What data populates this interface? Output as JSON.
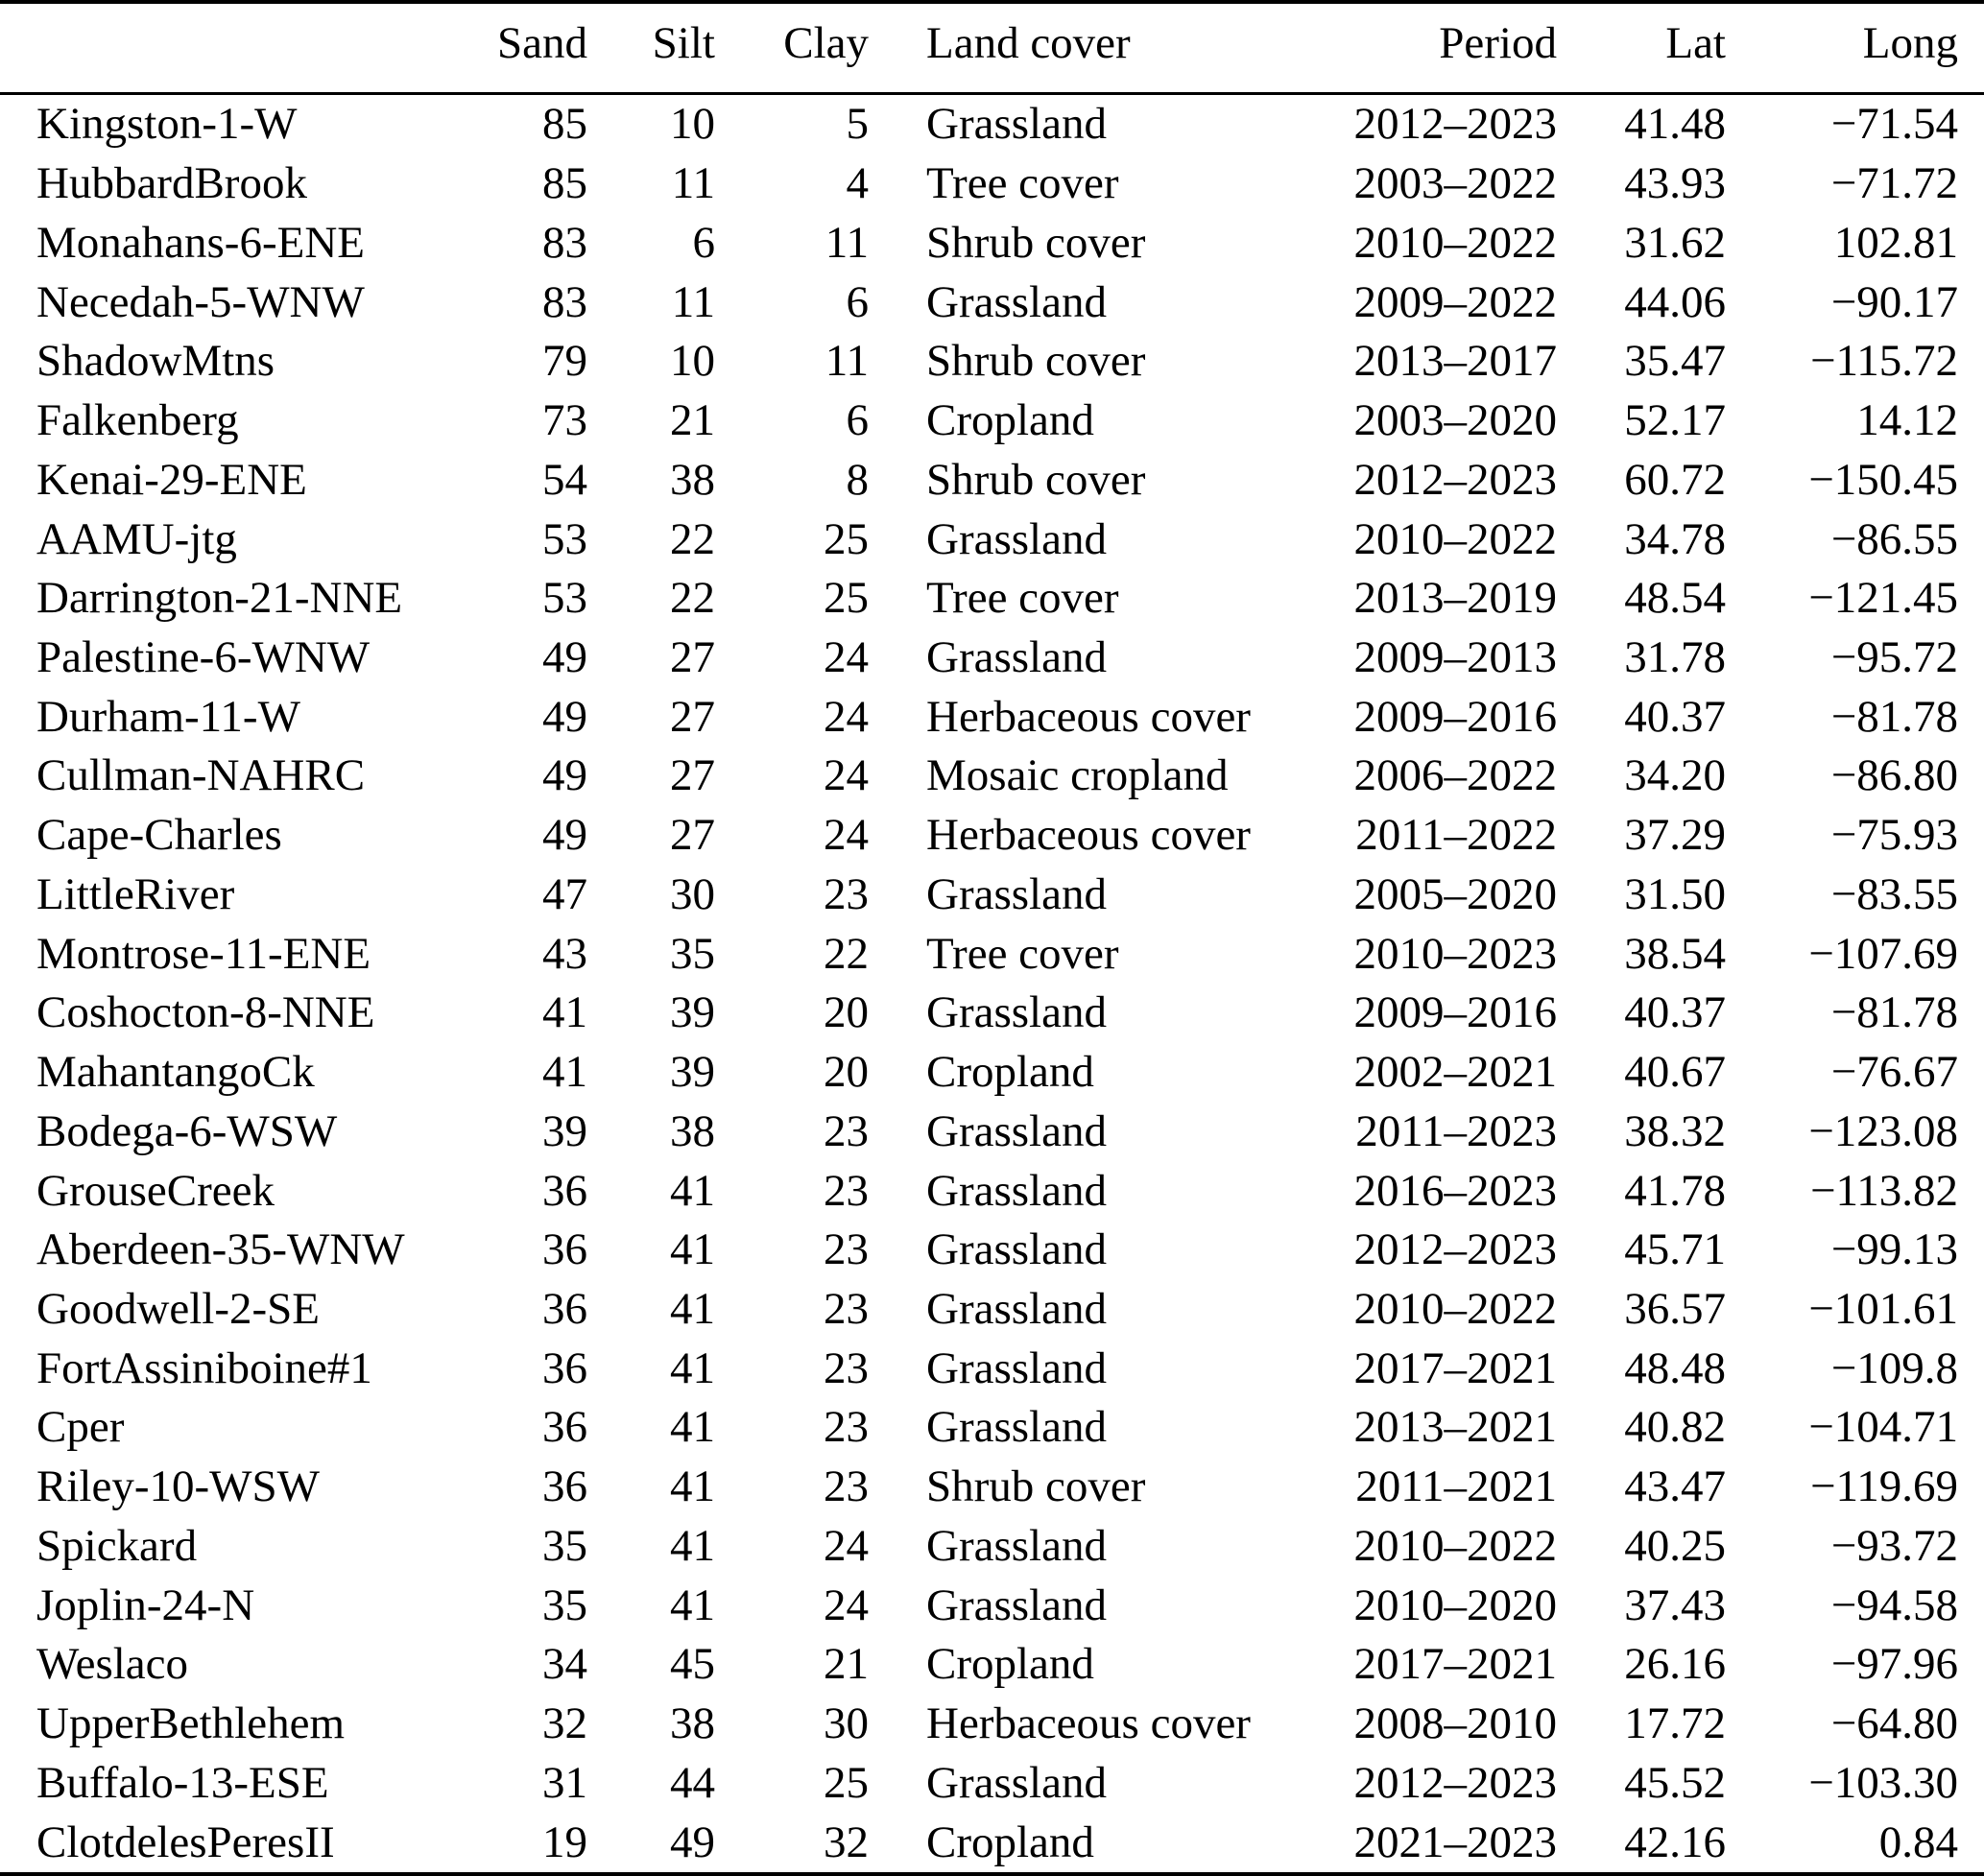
{
  "table": {
    "columns": [
      "",
      "Sand",
      "Silt",
      "Clay",
      "Land cover",
      "Period",
      "Lat",
      "Long"
    ],
    "rows": [
      {
        "name": "Kingston-1-W",
        "sand": "85",
        "silt": "10",
        "clay": "5",
        "land_cover": "Grassland",
        "period": "2012–2023",
        "lat": "41.48",
        "long": "−71.54"
      },
      {
        "name": "HubbardBrook",
        "sand": "85",
        "silt": "11",
        "clay": "4",
        "land_cover": "Tree cover",
        "period": "2003–2022",
        "lat": "43.93",
        "long": "−71.72"
      },
      {
        "name": "Monahans-6-ENE",
        "sand": "83",
        "silt": "6",
        "clay": "11",
        "land_cover": "Shrub cover",
        "period": "2010–2022",
        "lat": "31.62",
        "long": "102.81"
      },
      {
        "name": "Necedah-5-WNW",
        "sand": "83",
        "silt": "11",
        "clay": "6",
        "land_cover": "Grassland",
        "period": "2009–2022",
        "lat": "44.06",
        "long": "−90.17"
      },
      {
        "name": "ShadowMtns",
        "sand": "79",
        "silt": "10",
        "clay": "11",
        "land_cover": "Shrub cover",
        "period": "2013–2017",
        "lat": "35.47",
        "long": "−115.72"
      },
      {
        "name": "Falkenberg",
        "sand": "73",
        "silt": "21",
        "clay": "6",
        "land_cover": "Cropland",
        "period": "2003–2020",
        "lat": "52.17",
        "long": "14.12"
      },
      {
        "name": "Kenai-29-ENE",
        "sand": "54",
        "silt": "38",
        "clay": "8",
        "land_cover": "Shrub cover",
        "period": "2012–2023",
        "lat": "60.72",
        "long": "−150.45"
      },
      {
        "name": "AAMU-jtg",
        "sand": "53",
        "silt": "22",
        "clay": "25",
        "land_cover": "Grassland",
        "period": "2010–2022",
        "lat": "34.78",
        "long": "−86.55"
      },
      {
        "name": "Darrington-21-NNE",
        "sand": "53",
        "silt": "22",
        "clay": "25",
        "land_cover": "Tree cover",
        "period": "2013–2019",
        "lat": "48.54",
        "long": "−121.45"
      },
      {
        "name": "Palestine-6-WNW",
        "sand": "49",
        "silt": "27",
        "clay": "24",
        "land_cover": "Grassland",
        "period": "2009–2013",
        "lat": "31.78",
        "long": "−95.72"
      },
      {
        "name": "Durham-11-W",
        "sand": "49",
        "silt": "27",
        "clay": "24",
        "land_cover": "Herbaceous cover",
        "period": "2009–2016",
        "lat": "40.37",
        "long": "−81.78"
      },
      {
        "name": "Cullman-NAHRC",
        "sand": "49",
        "silt": "27",
        "clay": "24",
        "land_cover": "Mosaic cropland",
        "period": "2006–2022",
        "lat": "34.20",
        "long": "−86.80"
      },
      {
        "name": "Cape-Charles",
        "sand": "49",
        "silt": "27",
        "clay": "24",
        "land_cover": "Herbaceous cover",
        "period": "2011–2022",
        "lat": "37.29",
        "long": "−75.93"
      },
      {
        "name": "LittleRiver",
        "sand": "47",
        "silt": "30",
        "clay": "23",
        "land_cover": "Grassland",
        "period": "2005–2020",
        "lat": "31.50",
        "long": "−83.55"
      },
      {
        "name": "Montrose-11-ENE",
        "sand": "43",
        "silt": "35",
        "clay": "22",
        "land_cover": "Tree cover",
        "period": "2010–2023",
        "lat": "38.54",
        "long": "−107.69"
      },
      {
        "name": "Coshocton-8-NNE",
        "sand": "41",
        "silt": "39",
        "clay": "20",
        "land_cover": "Grassland",
        "period": "2009–2016",
        "lat": "40.37",
        "long": "−81.78"
      },
      {
        "name": "MahantangoCk",
        "sand": "41",
        "silt": "39",
        "clay": "20",
        "land_cover": "Cropland",
        "period": "2002–2021",
        "lat": "40.67",
        "long": "−76.67"
      },
      {
        "name": "Bodega-6-WSW",
        "sand": "39",
        "silt": "38",
        "clay": "23",
        "land_cover": "Grassland",
        "period": "2011–2023",
        "lat": "38.32",
        "long": "−123.08"
      },
      {
        "name": "GrouseCreek",
        "sand": "36",
        "silt": "41",
        "clay": "23",
        "land_cover": "Grassland",
        "period": "2016–2023",
        "lat": "41.78",
        "long": "−113.82"
      },
      {
        "name": "Aberdeen-35-WNW",
        "sand": "36",
        "silt": "41",
        "clay": "23",
        "land_cover": "Grassland",
        "period": "2012–2023",
        "lat": "45.71",
        "long": "−99.13"
      },
      {
        "name": "Goodwell-2-SE",
        "sand": "36",
        "silt": "41",
        "clay": "23",
        "land_cover": "Grassland",
        "period": "2010–2022",
        "lat": "36.57",
        "long": "−101.61"
      },
      {
        "name": "FortAssiniboine#1",
        "sand": "36",
        "silt": "41",
        "clay": "23",
        "land_cover": "Grassland",
        "period": "2017–2021",
        "lat": "48.48",
        "long": "−109.8"
      },
      {
        "name": "Cper",
        "sand": "36",
        "silt": "41",
        "clay": "23",
        "land_cover": "Grassland",
        "period": "2013–2021",
        "lat": "40.82",
        "long": "−104.71"
      },
      {
        "name": "Riley-10-WSW",
        "sand": "36",
        "silt": "41",
        "clay": "23",
        "land_cover": "Shrub cover",
        "period": "2011–2021",
        "lat": "43.47",
        "long": "−119.69"
      },
      {
        "name": "Spickard",
        "sand": "35",
        "silt": "41",
        "clay": "24",
        "land_cover": "Grassland",
        "period": "2010–2022",
        "lat": "40.25",
        "long": "−93.72"
      },
      {
        "name": "Joplin-24-N",
        "sand": "35",
        "silt": "41",
        "clay": "24",
        "land_cover": "Grassland",
        "period": "2010–2020",
        "lat": "37.43",
        "long": "−94.58"
      },
      {
        "name": "Weslaco",
        "sand": "34",
        "silt": "45",
        "clay": "21",
        "land_cover": "Cropland",
        "period": "2017–2021",
        "lat": "26.16",
        "long": "−97.96"
      },
      {
        "name": "UpperBethlehem",
        "sand": "32",
        "silt": "38",
        "clay": "30",
        "land_cover": "Herbaceous cover",
        "period": "2008–2010",
        "lat": "17.72",
        "long": "−64.80"
      },
      {
        "name": "Buffalo-13-ESE",
        "sand": "31",
        "silt": "44",
        "clay": "25",
        "land_cover": "Grassland",
        "period": "2012–2023",
        "lat": "45.52",
        "long": "−103.30"
      },
      {
        "name": "ClotdelesPeresII",
        "sand": "19",
        "silt": "49",
        "clay": "32",
        "land_cover": "Cropland",
        "period": "2021–2023",
        "lat": "42.16",
        "long": "0.84"
      }
    ]
  }
}
